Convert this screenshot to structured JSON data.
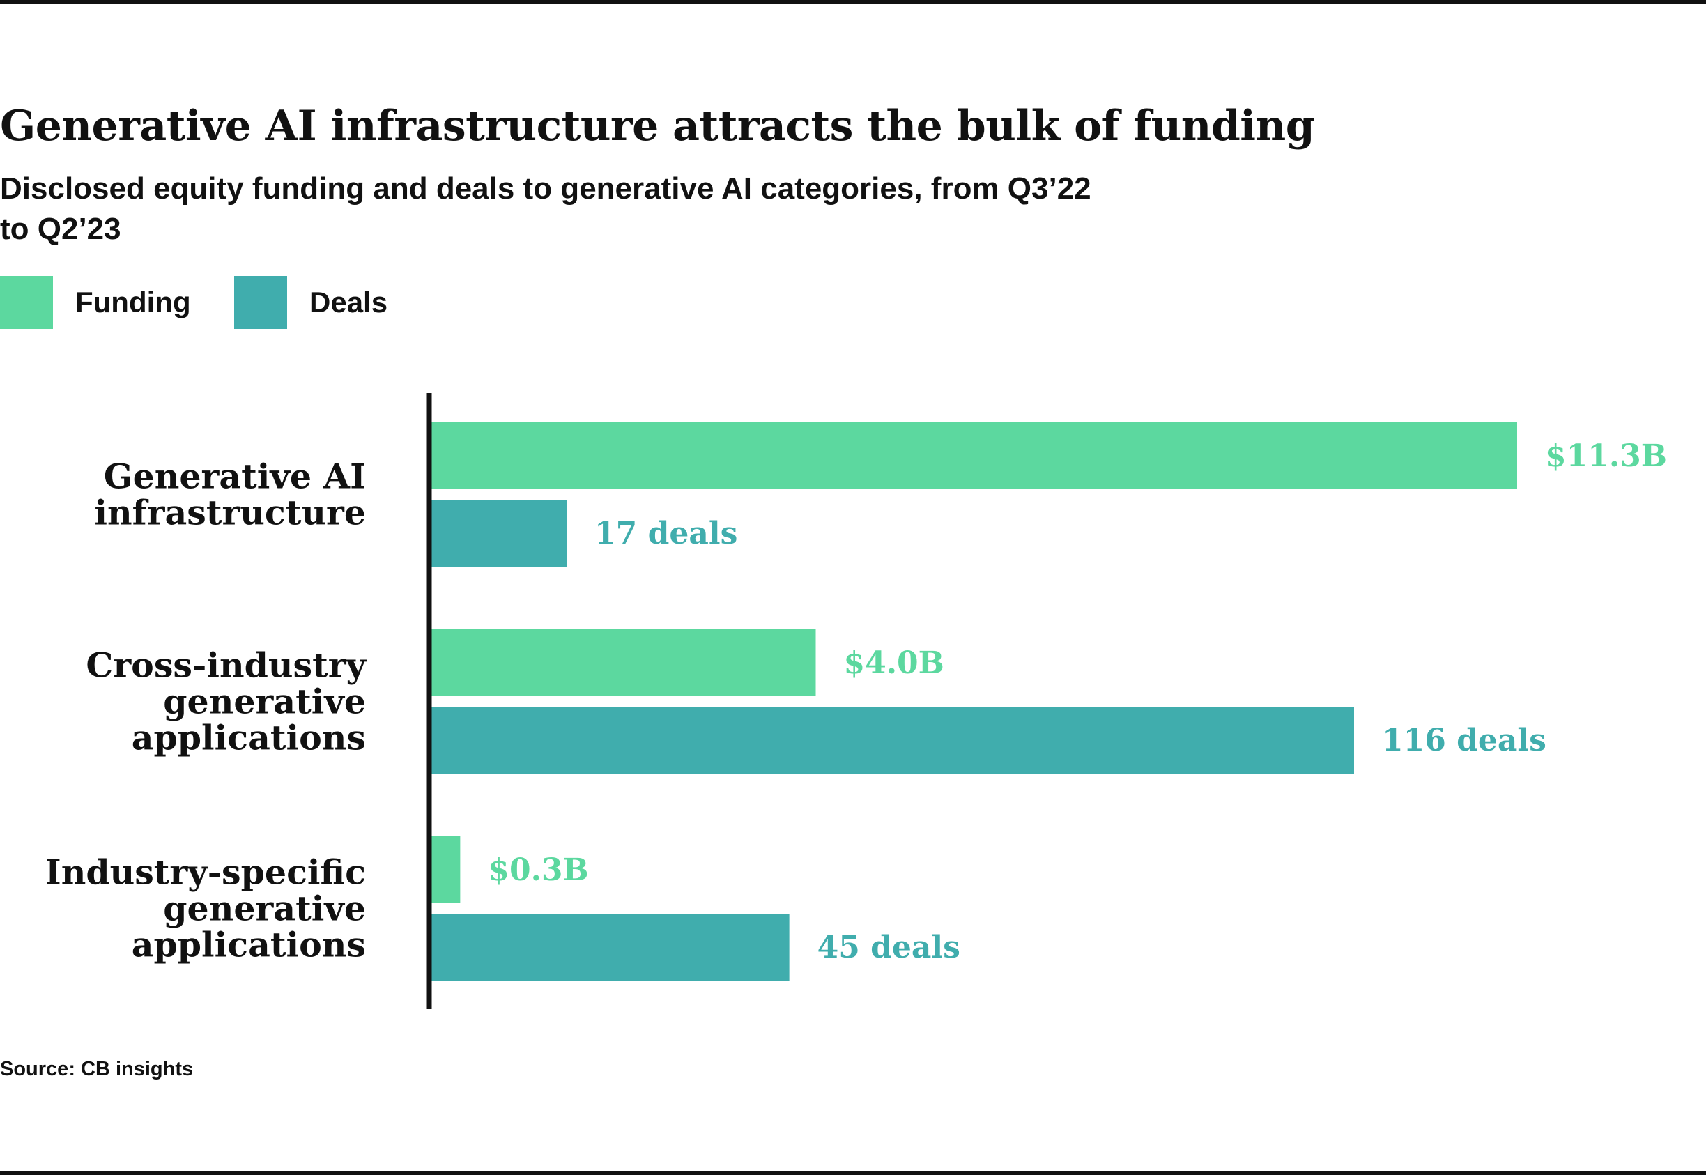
{
  "title": "Generative AI infrastructure attracts the bulk of funding",
  "subtitle": "Disclosed equity funding and deals to generative AI categories, from Q3’22 to Q2’23",
  "legend": [
    {
      "label": "Funding",
      "color": "#5cd89f"
    },
    {
      "label": "Deals",
      "color": "#40adad"
    }
  ],
  "source": "Source: CB insights",
  "chart_data": {
    "type": "bar",
    "orientation": "horizontal",
    "title": "Generative AI infrastructure attracts the bulk of funding",
    "subtitle": "Disclosed equity funding and deals to generative AI categories, from Q3’22 to Q2’23",
    "categories": [
      [
        "Generative AI",
        "infrastructure"
      ],
      [
        "Cross-industry",
        "generative",
        "applications"
      ],
      [
        "Industry-specific",
        "generative",
        "applications"
      ]
    ],
    "series": [
      {
        "name": "Funding",
        "unit": "$B",
        "color": "#5cd89f",
        "values": [
          11.3,
          4.0,
          0.3
        ],
        "labels": [
          "$11.3B",
          "$4.0B",
          "$0.3B"
        ]
      },
      {
        "name": "Deals",
        "unit": "deals",
        "color": "#40adad",
        "values": [
          17,
          116,
          45
        ],
        "labels": [
          "17 deals",
          "116 deals",
          "45 deals"
        ]
      }
    ],
    "grid": false,
    "legend_position": "top-left",
    "xaxis_visible": false
  }
}
